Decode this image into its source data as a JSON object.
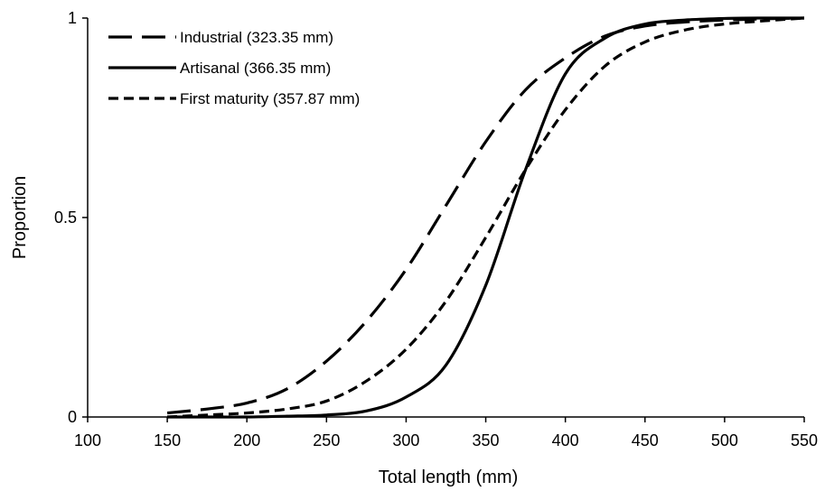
{
  "chart_data": {
    "type": "line",
    "xlabel": "Total length (mm)",
    "ylabel": "Proportion",
    "xlim": [
      100,
      550
    ],
    "ylim": [
      0,
      1
    ],
    "x_ticks": [
      "100",
      "150",
      "200",
      "250",
      "300",
      "350",
      "400",
      "450",
      "500",
      "550"
    ],
    "y_ticks": [
      "0",
      "0.5",
      "1"
    ],
    "grid": false,
    "legend_position": "top-left",
    "x": [
      150,
      175,
      200,
      225,
      250,
      275,
      300,
      325,
      350,
      375,
      400,
      425,
      450,
      475,
      500,
      525,
      550
    ],
    "series": [
      {
        "name": "Industrial (323.35 mm)",
        "style": "long-dash",
        "values": [
          0.01,
          0.02,
          0.035,
          0.07,
          0.14,
          0.24,
          0.37,
          0.53,
          0.69,
          0.82,
          0.9,
          0.955,
          0.98,
          0.99,
          0.995,
          0.998,
          1.0
        ]
      },
      {
        "name": "Artisanal (366.35 mm)",
        "style": "solid",
        "values": [
          0.0,
          0.0,
          0.0,
          0.002,
          0.005,
          0.015,
          0.05,
          0.13,
          0.33,
          0.62,
          0.86,
          0.95,
          0.985,
          0.995,
          0.999,
          1.0,
          1.0
        ]
      },
      {
        "name": "First maturity (357.87 mm)",
        "style": "short-dash",
        "values": [
          0.0,
          0.005,
          0.01,
          0.02,
          0.04,
          0.09,
          0.17,
          0.29,
          0.45,
          0.62,
          0.77,
          0.88,
          0.94,
          0.97,
          0.985,
          0.993,
          1.0
        ]
      }
    ]
  }
}
